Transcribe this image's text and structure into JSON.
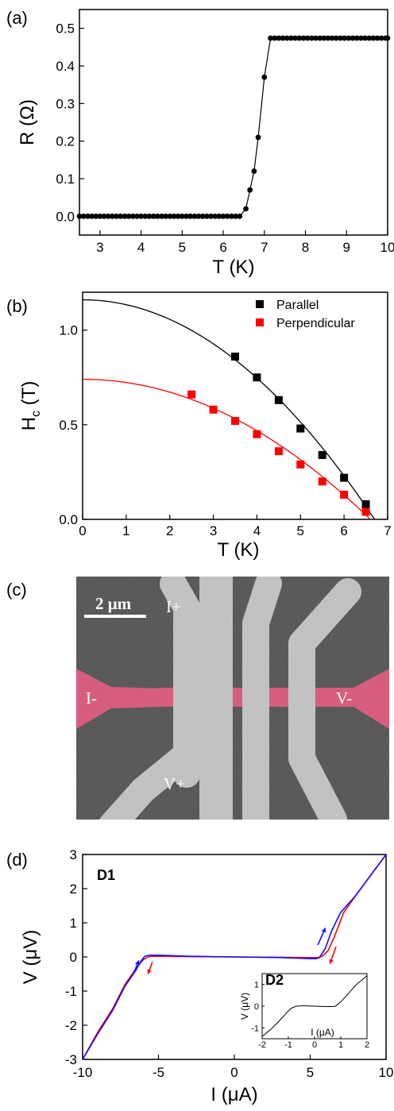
{
  "panels": {
    "a": "(a)",
    "b": "(b)",
    "c": "(c)",
    "d": "(d)"
  },
  "colors": {
    "black": "#000000",
    "red": "#ff0000",
    "blue": "#1010ff",
    "pink": "#d9577a"
  },
  "chart_data": [
    {
      "type": "scatter",
      "xlabel": "T (K)",
      "ylabel": "R (Ω)",
      "xlim": [
        2.5,
        10
      ],
      "ylim": [
        -0.05,
        0.55
      ],
      "xticks": [
        3,
        4,
        5,
        6,
        7,
        8,
        9,
        10
      ],
      "yticks": [
        0.0,
        0.1,
        0.2,
        0.3,
        0.4,
        0.5
      ],
      "ytick_labels": [
        "0.0",
        "0.1",
        "0.2",
        "0.3",
        "0.4",
        "0.5"
      ],
      "series": [
        {
          "x": [
            2.5,
            2.6,
            2.7,
            2.8,
            2.9,
            3.0,
            3.1,
            3.2,
            3.3,
            3.4,
            3.5,
            3.6,
            3.7,
            3.8,
            3.9,
            4.0,
            4.1,
            4.2,
            4.3,
            4.4,
            4.5,
            4.6,
            4.7,
            4.8,
            4.9,
            5.0,
            5.1,
            5.2,
            5.3,
            5.4,
            5.5,
            5.6,
            5.7,
            5.8,
            5.9,
            6.0,
            6.1,
            6.2,
            6.3,
            6.4,
            6.55,
            6.65,
            6.75,
            6.85,
            7.0,
            7.15,
            7.25,
            7.35,
            7.45,
            7.55,
            7.65,
            7.75,
            7.85,
            7.95,
            8.05,
            8.15,
            8.25,
            8.35,
            8.45,
            8.55,
            8.65,
            8.75,
            8.85,
            8.95,
            9.05,
            9.15,
            9.25,
            9.35,
            9.45,
            9.55,
            9.65,
            9.75,
            9.85,
            9.95,
            10.0
          ],
          "y": [
            0,
            0,
            0,
            0,
            0,
            0,
            0,
            0,
            0,
            0,
            0,
            0,
            0,
            0,
            0,
            0,
            0,
            0,
            0,
            0,
            0,
            0,
            0,
            0,
            0,
            0,
            0,
            0,
            0,
            0,
            0,
            0,
            0,
            0,
            0,
            0,
            0,
            0,
            0,
            0,
            0.02,
            0.07,
            0.12,
            0.21,
            0.37,
            0.474,
            0.474,
            0.474,
            0.474,
            0.474,
            0.474,
            0.474,
            0.474,
            0.474,
            0.474,
            0.474,
            0.474,
            0.474,
            0.474,
            0.474,
            0.474,
            0.474,
            0.474,
            0.474,
            0.474,
            0.474,
            0.474,
            0.474,
            0.474,
            0.474,
            0.474,
            0.474,
            0.474,
            0.474,
            0.474
          ]
        }
      ]
    },
    {
      "type": "scatter",
      "xlabel": "T (K)",
      "ylabel": "H",
      "ylabel_sub": "c",
      "ylabel_unit": " (T)",
      "xlim": [
        0,
        7
      ],
      "ylim": [
        0,
        1.2
      ],
      "xticks": [
        0,
        1,
        2,
        3,
        4,
        5,
        6,
        7
      ],
      "yticks": [
        0.0,
        0.5,
        1.0
      ],
      "ytick_labels": [
        "0.0",
        "0.5",
        "1.0"
      ],
      "legend": "top-right",
      "series": [
        {
          "name": "Parallel",
          "x": [
            3.5,
            4.0,
            4.5,
            5.0,
            5.5,
            6.0,
            6.5
          ],
          "y": [
            0.86,
            0.75,
            0.63,
            0.48,
            0.34,
            0.22,
            0.08
          ],
          "fit": {
            "Hc0": 1.16,
            "Tc": 6.7
          }
        },
        {
          "name": "Perpendicular",
          "x": [
            2.5,
            3.0,
            3.5,
            4.0,
            4.5,
            5.0,
            5.5,
            6.0,
            6.5
          ],
          "y": [
            0.66,
            0.58,
            0.52,
            0.45,
            0.36,
            0.29,
            0.2,
            0.13,
            0.04
          ],
          "fit": {
            "Hc0": 0.74,
            "Tc": 6.6
          }
        }
      ]
    },
    {
      "type": "line",
      "xlabel": "I (μA)",
      "ylabel": "V (μV)",
      "xlim": [
        -10,
        10
      ],
      "ylim": [
        -3,
        3
      ],
      "xticks": [
        -10,
        -5,
        0,
        5,
        10
      ],
      "yticks": [
        -3,
        -2,
        -1,
        0,
        1,
        2,
        3
      ],
      "annotation": "D1",
      "series": [
        {
          "x": [
            -10,
            -9,
            -8,
            -7.2,
            -6.5,
            -6.0,
            -5.7,
            -5.4,
            -5,
            -3,
            0,
            3,
            5,
            5.5,
            5.8,
            6.2,
            6.6,
            7.2,
            8,
            9,
            10
          ],
          "y": [
            -3.0,
            -2.2,
            -1.5,
            -0.8,
            -0.35,
            -0.08,
            0.0,
            0.02,
            0.02,
            0.01,
            0.0,
            -0.01,
            -0.02,
            -0.02,
            0.02,
            0.2,
            0.6,
            1.3,
            1.8,
            2.4,
            3.0
          ]
        },
        {
          "x": [
            -10,
            -9,
            -8,
            -7.2,
            -6.5,
            -6.2,
            -5.9,
            -5.6,
            -5,
            -3,
            0,
            3,
            5,
            5.4,
            5.6,
            6.0,
            6.4,
            7.0,
            8,
            9,
            10
          ],
          "y": [
            -3.0,
            -2.25,
            -1.55,
            -0.85,
            -0.4,
            -0.15,
            0.02,
            0.05,
            0.05,
            0.02,
            0.0,
            -0.02,
            -0.05,
            -0.05,
            -0.02,
            0.25,
            0.75,
            1.3,
            1.8,
            2.4,
            3.0
          ]
        }
      ],
      "inset": {
        "annotation": "D2",
        "xlabel": "I (μA)",
        "ylabel": "V (μV)",
        "xlim": [
          -2,
          2
        ],
        "ylim": [
          -1.5,
          1.5
        ],
        "xticks": [
          -2,
          -1,
          0,
          1,
          2
        ],
        "yticks": [
          -1,
          0,
          1
        ],
        "x": [
          -2,
          -1.7,
          -1.4,
          -1.1,
          -0.9,
          -0.7,
          -0.4,
          0,
          0.4,
          0.7,
          0.8,
          1.0,
          1.3,
          1.6,
          2
        ],
        "y": [
          -1.4,
          -1.1,
          -0.75,
          -0.35,
          -0.1,
          0.0,
          0.02,
          0.0,
          -0.02,
          -0.02,
          0.0,
          0.2,
          0.6,
          1.0,
          1.4
        ]
      }
    }
  ],
  "sem": {
    "scale_label": "2 μm",
    "labels": {
      "i_plus": "I+",
      "i_minus": "I-",
      "v_plus": "V+",
      "v_minus": "V-"
    }
  }
}
